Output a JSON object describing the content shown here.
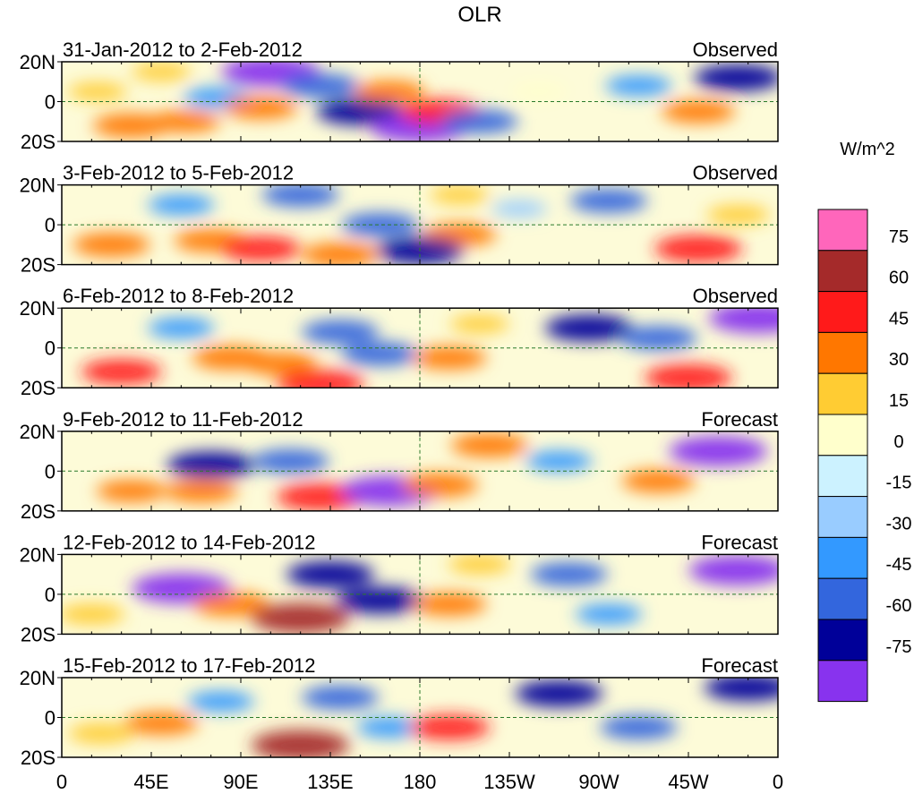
{
  "chart_data": {
    "type": "heatmap",
    "title": "OLR",
    "units": "W/m^2",
    "lat_ticks": [
      "20N",
      "0",
      "20S"
    ],
    "lon_ticks": [
      "0",
      "45E",
      "90E",
      "135E",
      "180",
      "135W",
      "90W",
      "45W",
      "0"
    ],
    "lon_range": [
      0,
      360
    ],
    "lat_range": [
      -20,
      20
    ],
    "colorbar": {
      "levels": [
        "75",
        "60",
        "45",
        "30",
        "15",
        "0",
        "-15",
        "-30",
        "-45",
        "-60",
        "-75"
      ],
      "colors": [
        "#ff66bb",
        "#a52a2a",
        "#ff1a1a",
        "#ff7700",
        "#ffcc33",
        "#ffffcc",
        "#ccf2ff",
        "#99ccff",
        "#3399ff",
        "#3366dd",
        "#000099",
        "#8833ee"
      ]
    },
    "panels": [
      {
        "period": "31-Jan-2012 to 2-Feb-2012",
        "status": "Observed",
        "anomalies": [
          {
            "lon": 18,
            "lat": 5,
            "value": 20
          },
          {
            "lon": 35,
            "lat": -12,
            "value": 45
          },
          {
            "lon": 50,
            "lat": 15,
            "value": 20
          },
          {
            "lon": 62,
            "lat": -10,
            "value": 35
          },
          {
            "lon": 78,
            "lat": 2,
            "value": -30
          },
          {
            "lon": 100,
            "lat": -3,
            "value": 40
          },
          {
            "lon": 105,
            "lat": 15,
            "value": -75
          },
          {
            "lon": 130,
            "lat": 8,
            "value": -45
          },
          {
            "lon": 150,
            "lat": -5,
            "value": -60
          },
          {
            "lon": 165,
            "lat": 5,
            "value": 35
          },
          {
            "lon": 180,
            "lat": -13,
            "value": -75
          },
          {
            "lon": 190,
            "lat": -5,
            "value": 50
          },
          {
            "lon": 210,
            "lat": -10,
            "value": -45
          },
          {
            "lon": 240,
            "lat": 5,
            "value": 15
          },
          {
            "lon": 290,
            "lat": 8,
            "value": -30
          },
          {
            "lon": 320,
            "lat": -5,
            "value": 40
          },
          {
            "lon": 340,
            "lat": 12,
            "value": -60
          }
        ]
      },
      {
        "period": "3-Feb-2012 to 5-Feb-2012",
        "status": "Observed",
        "anomalies": [
          {
            "lon": 25,
            "lat": -10,
            "value": 45
          },
          {
            "lon": 60,
            "lat": 10,
            "value": -30
          },
          {
            "lon": 75,
            "lat": -8,
            "value": 40
          },
          {
            "lon": 100,
            "lat": -12,
            "value": 50
          },
          {
            "lon": 120,
            "lat": 15,
            "value": -45
          },
          {
            "lon": 140,
            "lat": -15,
            "value": 45
          },
          {
            "lon": 160,
            "lat": 0,
            "value": -45
          },
          {
            "lon": 200,
            "lat": -5,
            "value": 40
          },
          {
            "lon": 200,
            "lat": 15,
            "value": 20
          },
          {
            "lon": 180,
            "lat": -13,
            "value": -60
          },
          {
            "lon": 230,
            "lat": 8,
            "value": -15
          },
          {
            "lon": 275,
            "lat": 12,
            "value": -45
          },
          {
            "lon": 320,
            "lat": -12,
            "value": 60
          },
          {
            "lon": 340,
            "lat": 5,
            "value": 25
          }
        ]
      },
      {
        "period": "6-Feb-2012 to 8-Feb-2012",
        "status": "Observed",
        "anomalies": [
          {
            "lon": 30,
            "lat": -12,
            "value": 50
          },
          {
            "lon": 60,
            "lat": 10,
            "value": -30
          },
          {
            "lon": 85,
            "lat": -5,
            "value": 45
          },
          {
            "lon": 110,
            "lat": -8,
            "value": 40
          },
          {
            "lon": 130,
            "lat": -18,
            "value": 60
          },
          {
            "lon": 140,
            "lat": 8,
            "value": -45
          },
          {
            "lon": 160,
            "lat": -3,
            "value": -45
          },
          {
            "lon": 195,
            "lat": -5,
            "value": 40
          },
          {
            "lon": 210,
            "lat": 12,
            "value": 20
          },
          {
            "lon": 265,
            "lat": 10,
            "value": -60
          },
          {
            "lon": 300,
            "lat": 5,
            "value": -45
          },
          {
            "lon": 315,
            "lat": -15,
            "value": 60
          },
          {
            "lon": 350,
            "lat": 15,
            "value": -75
          }
        ]
      },
      {
        "period": "9-Feb-2012 to 11-Feb-2012",
        "status": "Forecast",
        "anomalies": [
          {
            "lon": 35,
            "lat": -10,
            "value": 35
          },
          {
            "lon": 75,
            "lat": 3,
            "value": -60
          },
          {
            "lon": 70,
            "lat": -10,
            "value": 40
          },
          {
            "lon": 115,
            "lat": 5,
            "value": -45
          },
          {
            "lon": 130,
            "lat": -13,
            "value": 60
          },
          {
            "lon": 165,
            "lat": -10,
            "value": -75
          },
          {
            "lon": 190,
            "lat": -7,
            "value": 45
          },
          {
            "lon": 215,
            "lat": 13,
            "value": 45
          },
          {
            "lon": 250,
            "lat": 5,
            "value": -30
          },
          {
            "lon": 300,
            "lat": -5,
            "value": 40
          },
          {
            "lon": 330,
            "lat": 10,
            "value": -75
          }
        ]
      },
      {
        "period": "12-Feb-2012 to 14-Feb-2012",
        "status": "Forecast",
        "anomalies": [
          {
            "lon": 15,
            "lat": -10,
            "value": 30
          },
          {
            "lon": 60,
            "lat": 3,
            "value": -75
          },
          {
            "lon": 85,
            "lat": -5,
            "value": 45
          },
          {
            "lon": 120,
            "lat": -12,
            "value": 75
          },
          {
            "lon": 135,
            "lat": 10,
            "value": -60
          },
          {
            "lon": 160,
            "lat": -3,
            "value": -60
          },
          {
            "lon": 195,
            "lat": -5,
            "value": 40
          },
          {
            "lon": 210,
            "lat": 15,
            "value": 25
          },
          {
            "lon": 255,
            "lat": 10,
            "value": -45
          },
          {
            "lon": 275,
            "lat": -10,
            "value": -30
          },
          {
            "lon": 340,
            "lat": 12,
            "value": -75
          }
        ]
      },
      {
        "period": "15-Feb-2012 to 17-Feb-2012",
        "status": "Forecast",
        "anomalies": [
          {
            "lon": 20,
            "lat": -8,
            "value": 30
          },
          {
            "lon": 50,
            "lat": -3,
            "value": 40
          },
          {
            "lon": 80,
            "lat": 8,
            "value": -30
          },
          {
            "lon": 120,
            "lat": -14,
            "value": 75
          },
          {
            "lon": 140,
            "lat": 10,
            "value": -45
          },
          {
            "lon": 165,
            "lat": -5,
            "value": -30
          },
          {
            "lon": 195,
            "lat": -5,
            "value": 50
          },
          {
            "lon": 250,
            "lat": 12,
            "value": -60
          },
          {
            "lon": 290,
            "lat": -5,
            "value": -45
          },
          {
            "lon": 345,
            "lat": 15,
            "value": -60
          }
        ]
      }
    ]
  }
}
